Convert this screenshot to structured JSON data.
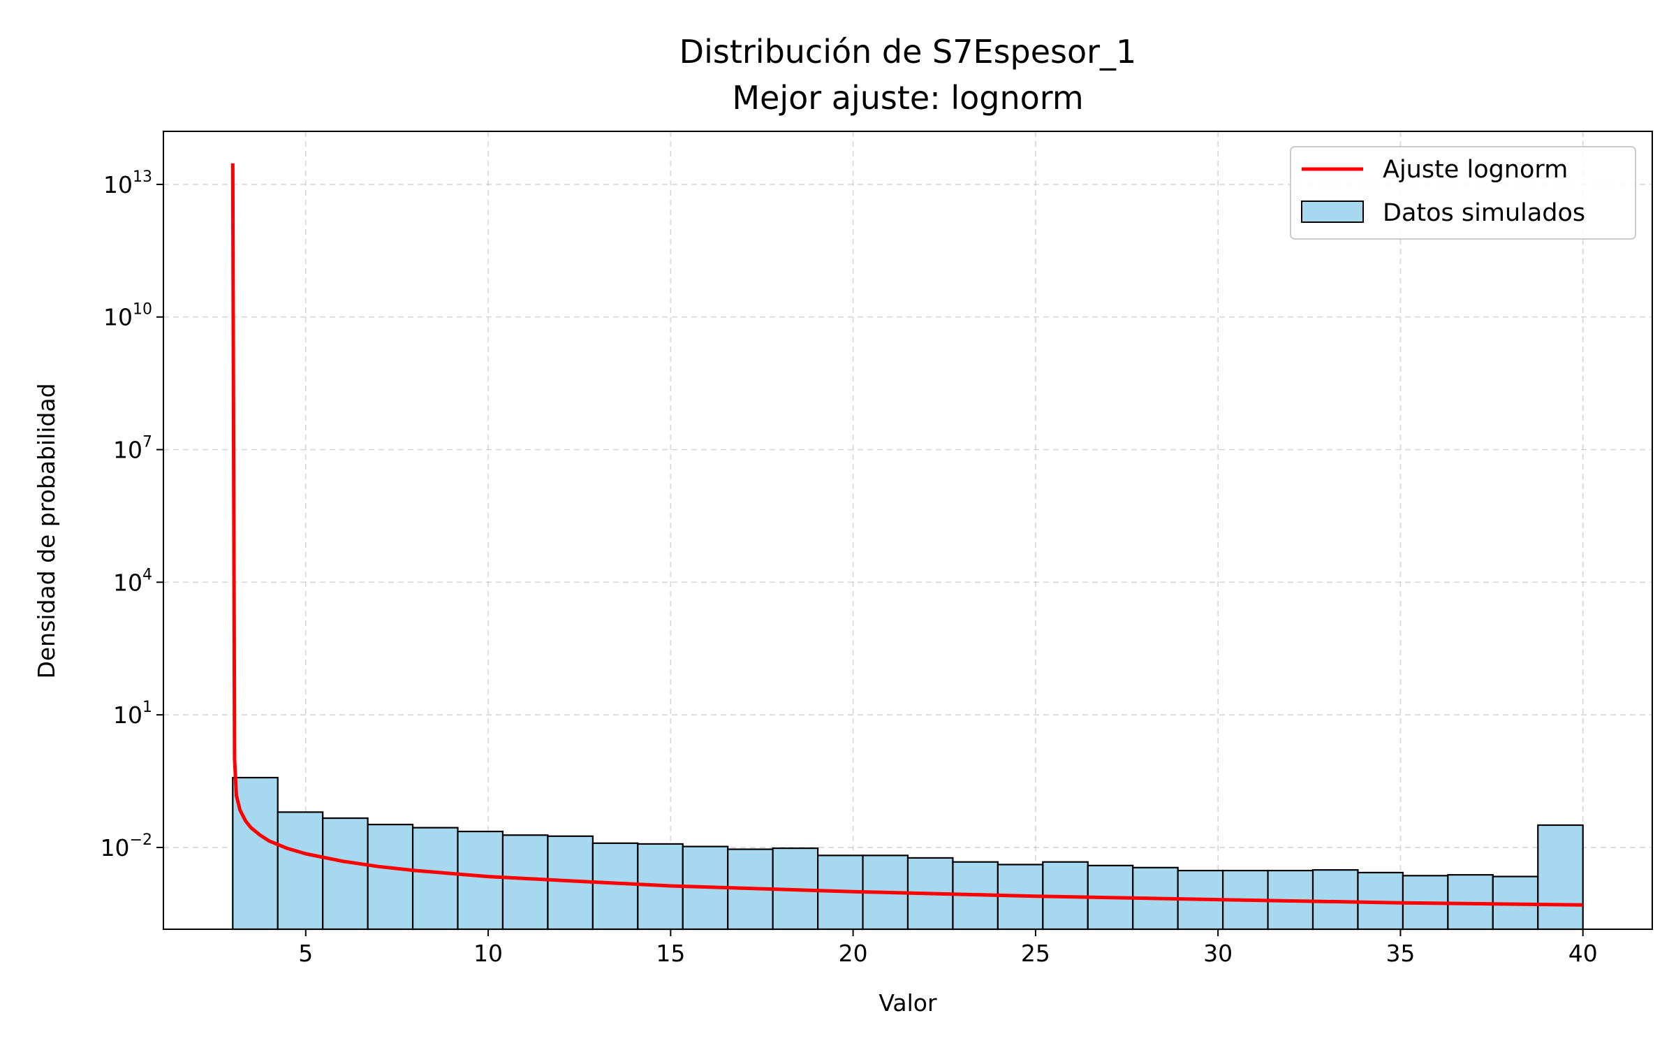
{
  "chart_data": {
    "type": "histogram",
    "title": "Distribución de S7Espesor_1",
    "subtitle": "Mejor ajuste: lognorm",
    "xlabel": "Valor",
    "ylabel": "Densidad de probabilidad",
    "xlim": [
      1.1,
      41.9
    ],
    "ylim_log10": [
      -3.85,
      14.2
    ],
    "y_scale": "log",
    "grid": true,
    "legend_position": "top-right",
    "x_ticks": [
      {
        "value": 5,
        "label": "5"
      },
      {
        "value": 10,
        "label": "10"
      },
      {
        "value": 15,
        "label": "15"
      },
      {
        "value": 20,
        "label": "20"
      },
      {
        "value": 25,
        "label": "25"
      },
      {
        "value": 30,
        "label": "30"
      },
      {
        "value": 35,
        "label": "35"
      },
      {
        "value": 40,
        "label": "40"
      }
    ],
    "y_ticks": [
      {
        "exponent": 13,
        "base": "10",
        "sup": "13"
      },
      {
        "exponent": 10,
        "base": "10",
        "sup": "10"
      },
      {
        "exponent": 7,
        "base": "10",
        "sup": "7"
      },
      {
        "exponent": 4,
        "base": "10",
        "sup": "4"
      },
      {
        "exponent": 1,
        "base": "10",
        "sup": "1"
      },
      {
        "exponent": -2,
        "base": "10",
        "sup": "−2"
      }
    ],
    "series": [
      {
        "name": "Datos simulados",
        "kind": "bars",
        "color": "#a6d9f0",
        "edge_color": "#000000",
        "bin_start": 3.0,
        "bin_end": 40.0,
        "values": [
          0.38,
          0.063,
          0.046,
          0.033,
          0.028,
          0.023,
          0.019,
          0.018,
          0.0125,
          0.012,
          0.0105,
          0.0091,
          0.0096,
          0.0066,
          0.0066,
          0.0058,
          0.0047,
          0.0041,
          0.0047,
          0.0039,
          0.0035,
          0.003,
          0.003,
          0.003,
          0.0031,
          0.0027,
          0.0023,
          0.0024,
          0.0022,
          0.032
        ]
      },
      {
        "name": "Ajuste lognorm",
        "kind": "line",
        "color": "#ff0000",
        "x": [
          3.0,
          3.05,
          3.1,
          3.2,
          3.35,
          3.5,
          3.75,
          4.0,
          4.5,
          5.0,
          6.0,
          7.0,
          8.0,
          10.0,
          12.0,
          15.0,
          20.0,
          25.0,
          30.0,
          35.0,
          40.0
        ],
        "y": [
          30000000000000.0,
          1.0,
          0.15,
          0.07,
          0.04,
          0.028,
          0.019,
          0.014,
          0.0095,
          0.0072,
          0.0049,
          0.0037,
          0.003,
          0.0022,
          0.0018,
          0.00135,
          0.001,
          0.00079,
          0.00066,
          0.00056,
          0.0005
        ]
      }
    ]
  }
}
